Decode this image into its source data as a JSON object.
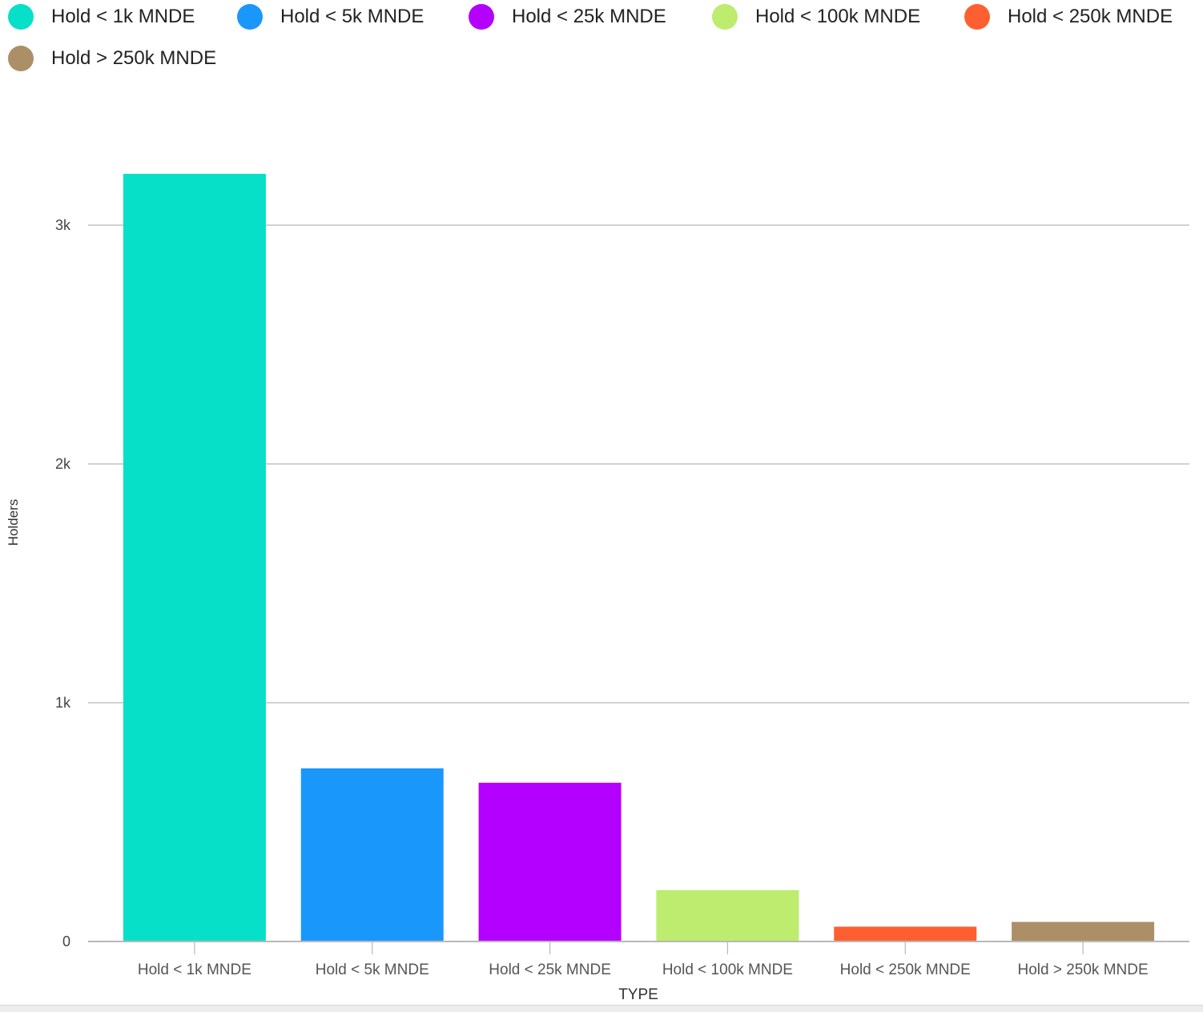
{
  "chart_data": {
    "type": "bar",
    "categories": [
      "Hold < 1k MNDE",
      "Hold < 5k MNDE",
      "Hold < 25k MNDE",
      "Hold < 100k MNDE",
      "Hold < 250k MNDE",
      "Hold > 250k MNDE"
    ],
    "values": [
      3215,
      725,
      665,
      215,
      62,
      82
    ],
    "colors": [
      "#07e0c8",
      "#1a97fb",
      "#b400fe",
      "#bdec6e",
      "#ff5f30",
      "#ad8f67"
    ],
    "xlabel": "TYPE",
    "ylabel": "Holders",
    "yticks": [
      0,
      1000,
      2000,
      3000
    ],
    "ytick_labels": [
      "0",
      "1k",
      "2k",
      "3k"
    ],
    "ylim": [
      0,
      3300
    ],
    "grid": true,
    "legend_position": "top-left"
  }
}
